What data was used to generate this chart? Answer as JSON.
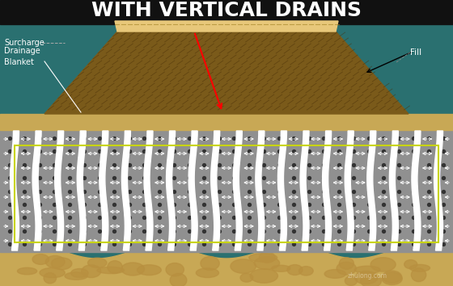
{
  "title": "WITH VERTICAL DRAINS",
  "title_color": "#ffffff",
  "title_fontsize": 18,
  "labels": {
    "surcharge": "Surcharge",
    "drainage_blanket": "Drainage\nBlanket",
    "fill": "Fill"
  },
  "colors": {
    "fill_top": "#e8c87a",
    "fill_body": "#7a5a1a",
    "drainage_blanket": "#c8a855",
    "soft_soil": "#909090",
    "drain_white": "#ffffff",
    "sand_bottom": "#c8a855",
    "teal_bg": "#2a7070",
    "black_header": "#111111",
    "rect_border": "#c8d400",
    "label_color": "#ffffff",
    "dot_color": "#333333",
    "sand_blob": "#b89040"
  },
  "fig_width": 5.6,
  "fig_height": 3.54,
  "dpi": 100
}
